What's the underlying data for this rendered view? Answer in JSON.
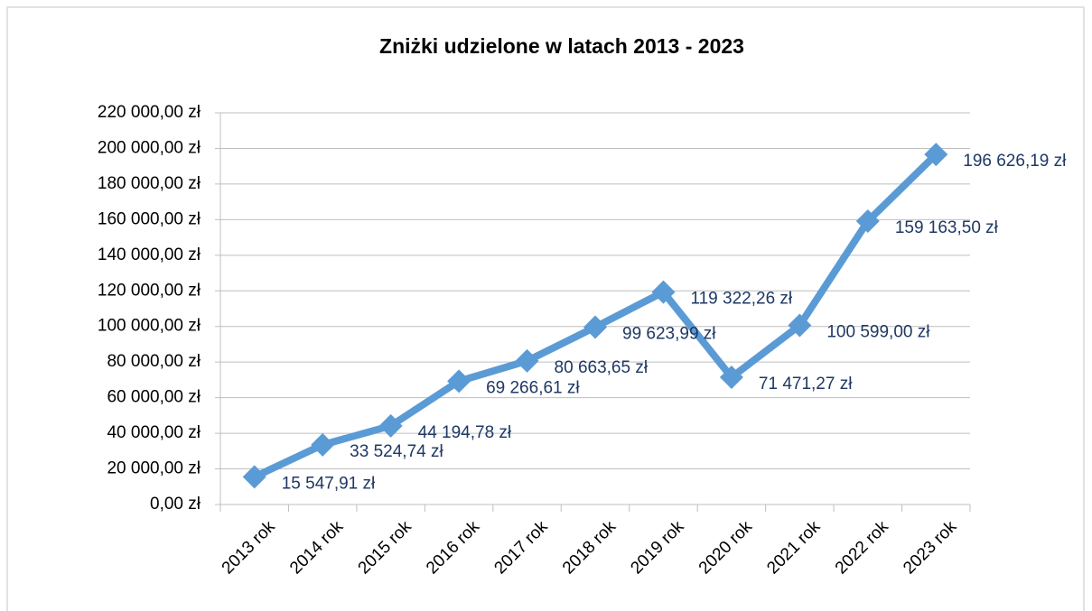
{
  "chart_data": {
    "type": "line",
    "title": "Zniżki udzielone w latach 2013 - 2023",
    "categories": [
      "2013 rok",
      "2014 rok",
      "2015 rok",
      "2016 rok",
      "2017 rok",
      "2018 rok",
      "2019 rok",
      "2020 rok",
      "2021 rok",
      "2022 rok",
      "2023 rok"
    ],
    "values": [
      15547.91,
      33524.74,
      44194.78,
      69266.61,
      80663.65,
      99623.99,
      119322.26,
      71471.27,
      100599.0,
      159163.5,
      196626.19
    ],
    "value_labels": [
      "15 547,91 zł",
      "33 524,74 zł",
      "44 194,78 zł",
      "69 266,61 zł",
      "80 663,65 zł",
      "99 623,99 zł",
      "119 322,26 zł",
      "71 471,27 zł",
      "100 599,00 zł",
      "159 163,50 zł",
      "196 626,19 zł"
    ],
    "color": "#5b9bd5",
    "ylim": [
      0,
      220000
    ],
    "yticks": [
      {
        "value": 0,
        "label": "0,00 zł"
      },
      {
        "value": 20000,
        "label": "20 000,00 zł"
      },
      {
        "value": 40000,
        "label": "40 000,00 zł"
      },
      {
        "value": 60000,
        "label": "60 000,00 zł"
      },
      {
        "value": 80000,
        "label": "80 000,00 zł"
      },
      {
        "value": 100000,
        "label": "100 000,00 zł"
      },
      {
        "value": 120000,
        "label": "120 000,00 zł"
      },
      {
        "value": 140000,
        "label": "140 000,00 zł"
      },
      {
        "value": 160000,
        "label": "160 000,00 zł"
      },
      {
        "value": 180000,
        "label": "180 000,00 zł"
      },
      {
        "value": 200000,
        "label": "200 000,00 zł"
      },
      {
        "value": 220000,
        "label": "220 000,00 zł"
      }
    ],
    "grid": true
  }
}
